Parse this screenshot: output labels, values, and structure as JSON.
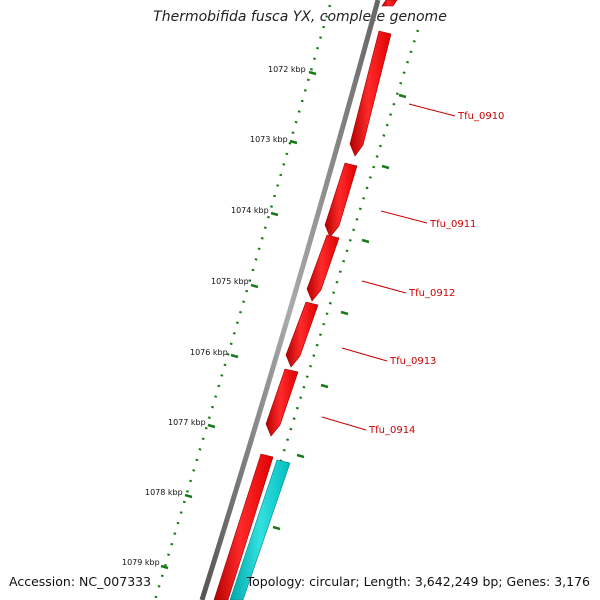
{
  "title": "Thermobifida fusca YX, complete genome",
  "footer": {
    "accession": "Accession: NC_007333",
    "summary": "Topology: circular; Length: 3,642,249 bp; Genes: 3,176"
  },
  "colors": {
    "backbone": "#808080",
    "gene_forward": "#ff0000",
    "gene_reverse": "#00cccc",
    "ticks": "#1a7a1a",
    "label": "#cc0000"
  },
  "scale_ticks": [
    "1072 kbp",
    "1073 kbp",
    "1074 kbp",
    "1075 kbp",
    "1076 kbp",
    "1077 kbp",
    "1078 kbp",
    "1079 kbp"
  ],
  "gene_labels": [
    "Tfu_0910",
    "Tfu_0911",
    "Tfu_0912",
    "Tfu_0913",
    "Tfu_0914"
  ]
}
